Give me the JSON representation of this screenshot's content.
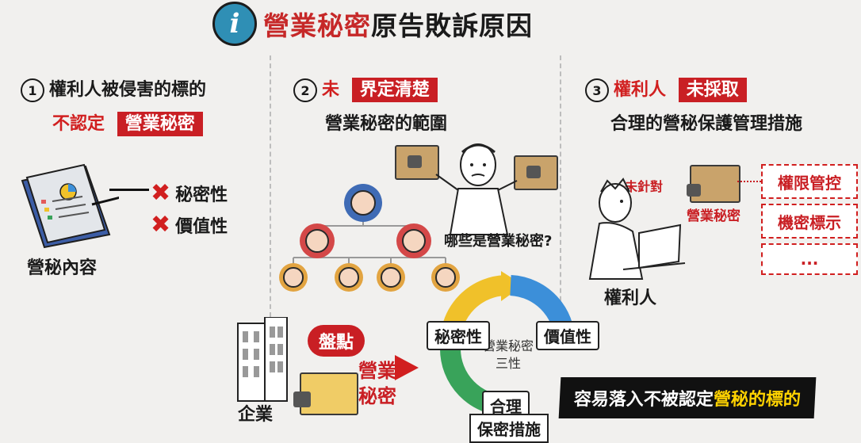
{
  "title": {
    "prefix": "營業秘密",
    "text": "原告敗訴原因"
  },
  "info_icon_glyph": "i",
  "colors": {
    "accent_red": "#c91f24",
    "info_blue": "#2f8fb5",
    "highlight_yellow": "#ffd200"
  },
  "col1": {
    "num": "1",
    "line1": "權利人被侵害的標的",
    "line2_prefix": "不認定",
    "line2_box": "營業秘密",
    "items": [
      "秘密性",
      "價值性"
    ],
    "doc_label": "營秘內容"
  },
  "col2": {
    "num": "2",
    "line1_prefix": "未",
    "line1_box": "界定清楚",
    "line2": "營業秘密的範圍",
    "question": "哪些是營業秘密?"
  },
  "col3": {
    "num": "3",
    "line1_prefix": "權利人",
    "line1_box": "未採取",
    "line2": "合理的營秘保護管理措施",
    "target_label": "未針對",
    "folder_label": "營業秘密",
    "measures": [
      "權限管控",
      "機密標示",
      "..."
    ],
    "person_label": "權利人"
  },
  "bottom": {
    "company_label": "企業",
    "inventory_tag": "盤點",
    "folder_label_1": "營業",
    "folder_label_2": "秘密",
    "cycle_center_1": "營業秘密",
    "cycle_center_2": "三性",
    "cycle_labels": [
      "秘密性",
      "價值性",
      "合理",
      "保密措施"
    ],
    "banner_prefix": "容易落入不被認定",
    "banner_highlight": "營秘的標的"
  }
}
